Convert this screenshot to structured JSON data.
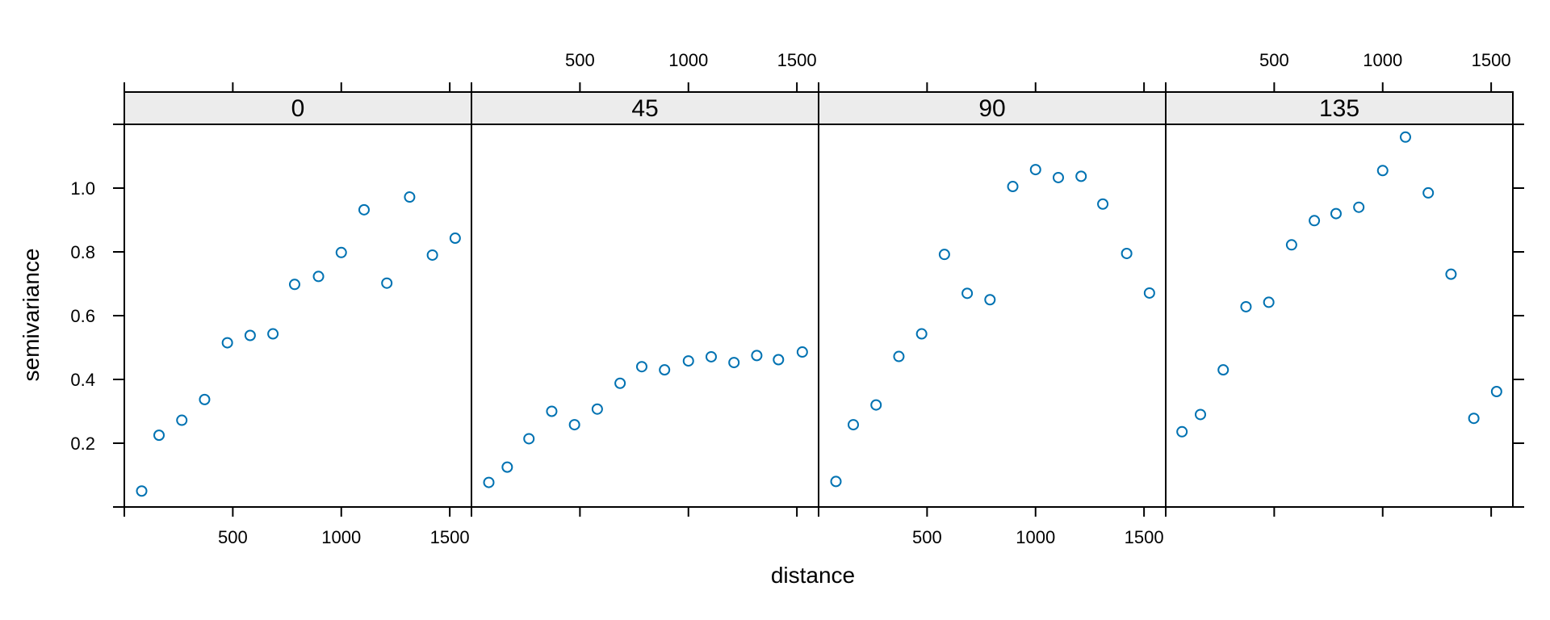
{
  "chart_data": {
    "type": "scatter",
    "xlabel": "distance",
    "ylabel": "semivariance",
    "xlim": [
      0,
      1600
    ],
    "ylim": [
      0,
      1.2
    ],
    "x_ticks": [
      500,
      1000,
      1500
    ],
    "y_ticks": [
      0.2,
      0.4,
      0.6,
      0.8,
      1.0
    ],
    "y_tick_labels": [
      "0.2",
      "0.4",
      "0.6",
      "0.8",
      "1.0"
    ],
    "point_color": "#0072B2",
    "strip_color": "#ececec",
    "panels": [
      {
        "label": "0",
        "x": [
          80,
          160,
          265,
          370,
          475,
          580,
          685,
          785,
          895,
          1000,
          1105,
          1210,
          1315,
          1420,
          1525
        ],
        "y": [
          0.05,
          0.225,
          0.272,
          0.337,
          0.515,
          0.538,
          0.543,
          0.698,
          0.723,
          0.798,
          0.932,
          0.702,
          0.972,
          0.79,
          0.843
        ]
      },
      {
        "label": "45",
        "x": [
          80,
          165,
          265,
          370,
          475,
          580,
          685,
          785,
          890,
          1000,
          1105,
          1210,
          1315,
          1415,
          1525
        ],
        "y": [
          0.077,
          0.125,
          0.214,
          0.3,
          0.258,
          0.307,
          0.388,
          0.44,
          0.43,
          0.458,
          0.471,
          0.453,
          0.475,
          0.462,
          0.486
        ]
      },
      {
        "label": "90",
        "x": [
          80,
          160,
          265,
          370,
          475,
          580,
          685,
          790,
          895,
          1000,
          1105,
          1210,
          1310,
          1420,
          1525
        ],
        "y": [
          0.08,
          0.258,
          0.32,
          0.472,
          0.543,
          0.792,
          0.67,
          0.65,
          1.005,
          1.058,
          1.033,
          1.037,
          0.95,
          0.795,
          0.671
        ]
      },
      {
        "label": "135",
        "x": [
          75,
          160,
          265,
          370,
          475,
          580,
          685,
          785,
          890,
          1000,
          1105,
          1210,
          1315,
          1420,
          1525
        ],
        "y": [
          0.236,
          0.29,
          0.43,
          0.628,
          0.642,
          0.822,
          0.898,
          0.92,
          0.94,
          1.055,
          1.16,
          0.985,
          0.73,
          0.278,
          0.362
        ]
      }
    ]
  }
}
